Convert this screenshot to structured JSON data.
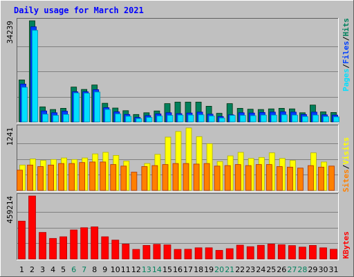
{
  "title": "Daily usage for March 2021",
  "colors": {
    "background": "#C0C0C0",
    "title": "#0000FF",
    "hits": "#00805C",
    "files": "#0040FF",
    "pages": "#00E0FF",
    "visits": "#FFFF00",
    "sites": "#FF8000",
    "kbytes": "#FF0000",
    "weekend_label": "#00805C",
    "weekday_label": "#000000",
    "grid": "#808080"
  },
  "legend": {
    "top": [
      {
        "text": "Pages",
        "color": "#00E0FF"
      },
      {
        "text": "/",
        "color": "#000000"
      },
      {
        "text": "Files",
        "color": "#0040FF"
      },
      {
        "text": "/",
        "color": "#000000"
      },
      {
        "text": "Hits",
        "color": "#00805C"
      }
    ],
    "middle": [
      {
        "text": "Sites",
        "color": "#FF8000"
      },
      {
        "text": "/",
        "color": "#000000"
      },
      {
        "text": "Visits",
        "color": "#FFFF00"
      }
    ],
    "bottom": [
      {
        "text": "KBytes",
        "color": "#FF0000"
      }
    ]
  },
  "chart_data": [
    {
      "type": "bar",
      "panel": "hits-files-pages",
      "categories": [
        "1",
        "2",
        "3",
        "4",
        "5",
        "6",
        "7",
        "8",
        "9",
        "10",
        "11",
        "12",
        "13",
        "14",
        "15",
        "16",
        "17",
        "18",
        "19",
        "20",
        "21",
        "22",
        "23",
        "24",
        "25",
        "26",
        "27",
        "28",
        "29",
        "30",
        "31"
      ],
      "weekend_days": [
        "6",
        "7",
        "13",
        "14",
        "20",
        "21",
        "27",
        "28"
      ],
      "ymax_label": "34239",
      "ylim": [
        0,
        34239
      ],
      "series": [
        {
          "name": "Hits",
          "values": [
            14200,
            34239,
            5100,
            4200,
            4600,
            11800,
            11000,
            12500,
            6300,
            4700,
            3800,
            2500,
            3100,
            3700,
            6200,
            6700,
            6700,
            6700,
            5300,
            2900,
            6200,
            4600,
            4300,
            4200,
            4400,
            4600,
            4400,
            3100,
            5700,
            3400,
            3200
          ]
        },
        {
          "name": "Files",
          "values": [
            12800,
            32200,
            3700,
            3100,
            3600,
            10200,
            10200,
            10900,
            4800,
            3400,
            2500,
            1500,
            2100,
            2700,
            3100,
            2800,
            3000,
            3300,
            2600,
            1800,
            2400,
            3100,
            3000,
            3200,
            3300,
            3400,
            3300,
            2500,
            3300,
            2400,
            2300
          ]
        },
        {
          "name": "Pages",
          "values": [
            11700,
            31000,
            2600,
            2200,
            2500,
            9800,
            9700,
            10100,
            4200,
            2700,
            1900,
            1100,
            1500,
            2000,
            2200,
            2300,
            2300,
            2400,
            2000,
            1300,
            2200,
            2200,
            2100,
            2300,
            2300,
            2400,
            2300,
            1800,
            2300,
            1800,
            1700
          ]
        }
      ]
    },
    {
      "type": "bar",
      "panel": "visits-sites",
      "categories": [
        "1",
        "2",
        "3",
        "4",
        "5",
        "6",
        "7",
        "8",
        "9",
        "10",
        "11",
        "12",
        "13",
        "14",
        "15",
        "16",
        "17",
        "18",
        "19",
        "20",
        "21",
        "22",
        "23",
        "24",
        "25",
        "26",
        "27",
        "28",
        "29",
        "30",
        "31"
      ],
      "ymax_label": "1241",
      "ylim": [
        0,
        1241
      ],
      "series": [
        {
          "name": "Visits",
          "values": [
            500,
            620,
            590,
            610,
            640,
            610,
            640,
            720,
            750,
            690,
            580,
            0,
            530,
            710,
            1050,
            1160,
            1230,
            1060,
            920,
            570,
            680,
            750,
            630,
            650,
            740,
            630,
            590,
            0,
            740,
            560,
            0
          ]
        },
        {
          "name": "Sites",
          "values": [
            400,
            500,
            470,
            500,
            530,
            530,
            550,
            560,
            560,
            510,
            480,
            360,
            470,
            490,
            510,
            530,
            530,
            520,
            530,
            480,
            490,
            510,
            490,
            510,
            510,
            470,
            460,
            440,
            490,
            460,
            480
          ]
        }
      ]
    },
    {
      "type": "bar",
      "panel": "kbytes",
      "categories": [
        "1",
        "2",
        "3",
        "4",
        "5",
        "6",
        "7",
        "8",
        "9",
        "10",
        "11",
        "12",
        "13",
        "14",
        "15",
        "16",
        "17",
        "18",
        "19",
        "20",
        "21",
        "22",
        "23",
        "24",
        "25",
        "26",
        "27",
        "28",
        "29",
        "30",
        "31"
      ],
      "ymax_label": "459214",
      "ylim": [
        0,
        459214
      ],
      "series": [
        {
          "name": "KBytes",
          "values": [
            276000,
            459214,
            194000,
            150000,
            162000,
            212000,
            228000,
            234000,
            162000,
            138000,
            109000,
            70000,
            99000,
            107000,
            103000,
            70000,
            71000,
            82000,
            82000,
            63000,
            75000,
            101000,
            90000,
            100000,
            109000,
            104000,
            98000,
            87000,
            99000,
            82000,
            71000
          ]
        }
      ]
    }
  ]
}
